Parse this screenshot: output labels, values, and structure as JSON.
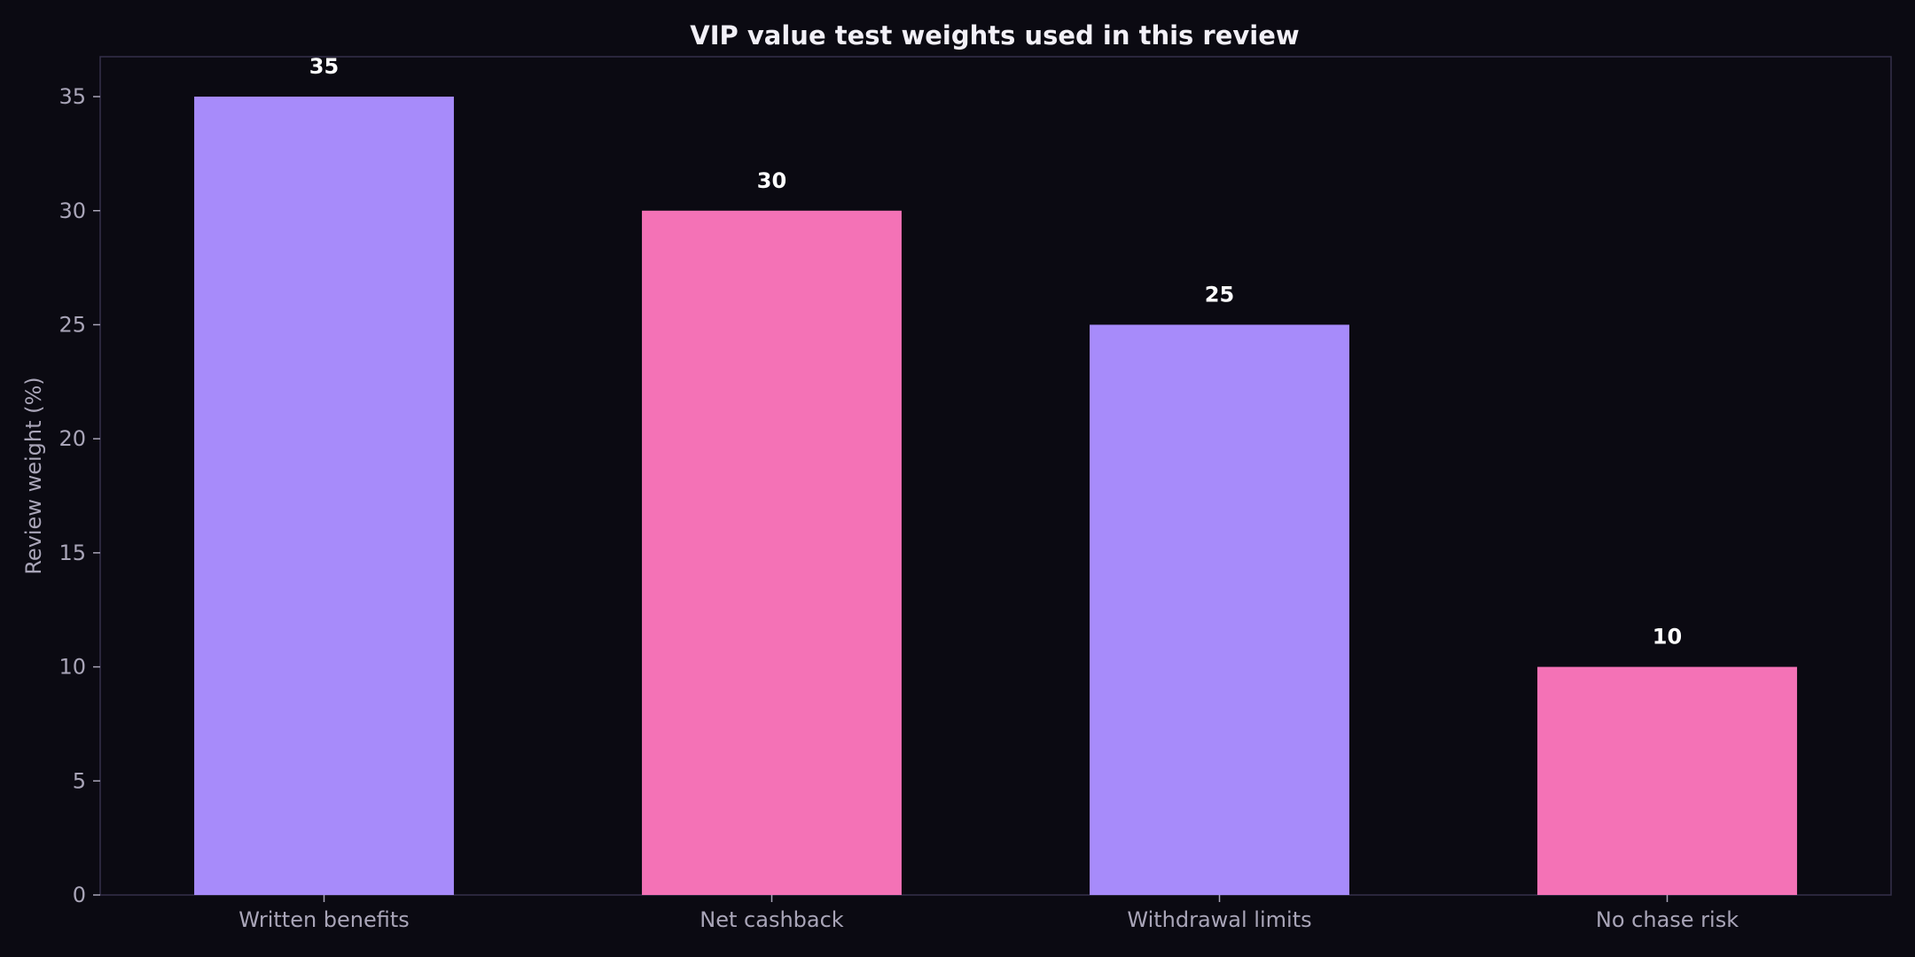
{
  "chart_data": {
    "type": "bar",
    "title": "VIP value test weights used in this review",
    "xlabel": "",
    "ylabel": "Review weight (%)",
    "categories": [
      "Written benefits",
      "Net cashback",
      "Withdrawal limits",
      "No chase risk"
    ],
    "values": [
      35,
      30,
      25,
      10
    ],
    "data_labels": [
      "35",
      "30",
      "25",
      "10"
    ],
    "ylim": [
      0,
      36.75
    ],
    "yticks": [
      0,
      5,
      10,
      15,
      20,
      25,
      30,
      35
    ],
    "grid": false,
    "legend": "none",
    "colors": {
      "background": "#0b0a12",
      "frame": "#34304a",
      "bar_series": [
        "#a78bfa",
        "#f472b6",
        "#a78bfa",
        "#f472b6"
      ]
    }
  }
}
